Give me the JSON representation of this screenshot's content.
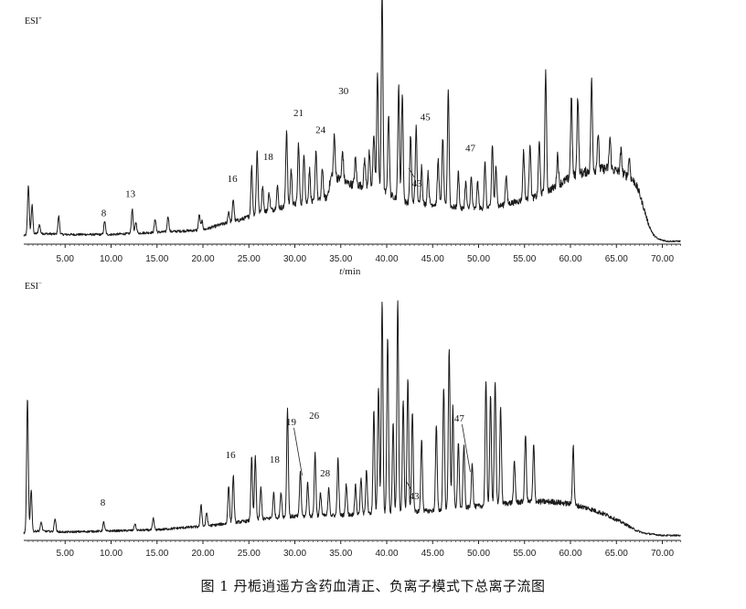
{
  "caption": "图 1 丹栀逍遥方含药血清正、负离子模式下总离子流图",
  "chart_data": {
    "type": "line",
    "xlabel_italic": "t",
    "xlabel_unit": "/min",
    "xlim": [
      0,
      72
    ],
    "x_ticks": [
      5,
      10,
      15,
      20,
      25,
      30,
      35,
      40,
      45,
      50,
      55,
      60,
      65,
      70
    ],
    "x_tick_labels": [
      "5.00",
      "10.00",
      "15.00",
      "20.00",
      "25.00",
      "30.00",
      "35.00",
      "40.00",
      "45.00",
      "50.00",
      "55.00",
      "60.00",
      "65.00",
      "70.00"
    ],
    "panels": [
      {
        "label": "ESI+",
        "label_main": "ESI",
        "label_sup": "+",
        "peak_labels": [
          {
            "text": "8",
            "x": 9.3
          },
          {
            "text": "13",
            "x": 12.3
          },
          {
            "text": "16",
            "x": 23.3
          },
          {
            "text": "18",
            "x": 27.2
          },
          {
            "text": "21",
            "x": 30.4
          },
          {
            "text": "24",
            "x": 32.2
          },
          {
            "text": "30",
            "x": 34.7
          },
          {
            "text": "43",
            "x": 42.8
          },
          {
            "text": "45",
            "x": 44.3
          },
          {
            "text": "47",
            "x": 49.2
          }
        ],
        "baseline": [
          [
            0.5,
            3
          ],
          [
            2,
            4
          ],
          [
            5,
            3.5
          ],
          [
            10,
            3.5
          ],
          [
            15,
            4.5
          ],
          [
            20,
            5.5
          ],
          [
            22,
            8
          ],
          [
            24,
            10
          ],
          [
            26,
            13
          ],
          [
            28,
            15
          ],
          [
            30,
            17
          ],
          [
            32,
            18
          ],
          [
            33.5,
            20
          ],
          [
            34,
            30
          ],
          [
            36,
            26
          ],
          [
            38,
            25
          ],
          [
            40,
            22
          ],
          [
            42,
            18
          ],
          [
            44,
            17
          ],
          [
            46,
            17
          ],
          [
            48,
            15
          ],
          [
            50,
            15
          ],
          [
            52,
            16
          ],
          [
            54,
            18
          ],
          [
            56,
            20
          ],
          [
            58,
            24
          ],
          [
            60,
            29
          ],
          [
            62,
            32
          ],
          [
            64,
            33
          ],
          [
            65,
            32
          ],
          [
            66,
            30
          ],
          [
            67,
            27
          ],
          [
            67.5,
            22
          ],
          [
            68,
            15
          ],
          [
            68.5,
            8
          ],
          [
            69,
            3.5
          ],
          [
            69.5,
            1.5
          ],
          [
            70.5,
            0.5
          ],
          [
            72,
            0.5
          ]
        ],
        "peaks": [
          [
            1.0,
            22
          ],
          [
            1.4,
            13
          ],
          [
            2.2,
            4
          ],
          [
            4.3,
            8
          ],
          [
            9.3,
            6
          ],
          [
            12.3,
            11
          ],
          [
            12.7,
            5
          ],
          [
            14.8,
            6
          ],
          [
            16.2,
            7
          ],
          [
            19.6,
            7
          ],
          [
            19.9,
            4
          ],
          [
            22.8,
            5
          ],
          [
            23.3,
            10
          ],
          [
            25.3,
            22
          ],
          [
            25.9,
            28
          ],
          [
            26.5,
            12
          ],
          [
            27.2,
            8
          ],
          [
            28.1,
            10
          ],
          [
            29.1,
            34
          ],
          [
            29.6,
            16
          ],
          [
            30.4,
            27
          ],
          [
            31.0,
            22
          ],
          [
            31.6,
            15
          ],
          [
            32.3,
            23
          ],
          [
            33.0,
            14
          ],
          [
            34.3,
            18
          ],
          [
            35.2,
            13
          ],
          [
            36.6,
            12
          ],
          [
            37.6,
            12
          ],
          [
            38.1,
            15
          ],
          [
            38.6,
            25
          ],
          [
            39.0,
            52
          ],
          [
            39.5,
            90
          ],
          [
            40.2,
            36
          ],
          [
            41.3,
            50
          ],
          [
            41.7,
            48
          ],
          [
            42.6,
            30
          ],
          [
            43.2,
            34
          ],
          [
            43.8,
            17
          ],
          [
            44.5,
            14
          ],
          [
            45.6,
            20
          ],
          [
            46.1,
            30
          ],
          [
            46.7,
            52
          ],
          [
            47.8,
            16
          ],
          [
            48.6,
            12
          ],
          [
            49.2,
            14
          ],
          [
            49.9,
            12
          ],
          [
            50.7,
            20
          ],
          [
            51.5,
            28
          ],
          [
            51.9,
            18
          ],
          [
            53.0,
            13
          ],
          [
            54.9,
            22
          ],
          [
            55.6,
            25
          ],
          [
            56.6,
            24
          ],
          [
            57.3,
            54
          ],
          [
            58.6,
            14
          ],
          [
            60.1,
            36
          ],
          [
            60.8,
            35
          ],
          [
            62.3,
            40
          ],
          [
            63.0,
            16
          ],
          [
            64.3,
            14
          ],
          [
            65.5,
            10
          ],
          [
            66.4,
            9
          ]
        ],
        "ymax": 105
      },
      {
        "label": "ESI-",
        "label_main": "ESI",
        "label_sup": "−",
        "peak_labels": [
          {
            "text": "8",
            "x": 9.2
          },
          {
            "text": "16",
            "x": 23.1
          },
          {
            "text": "18",
            "x": 28.0
          },
          {
            "text": "19",
            "x": 29.7
          },
          {
            "text": "26",
            "x": 32.2
          },
          {
            "text": "28",
            "x": 32.9
          },
          {
            "text": "43",
            "x": 42.2
          },
          {
            "text": "47",
            "x": 48.0
          }
        ],
        "baseline": [
          [
            0.5,
            2
          ],
          [
            2,
            3
          ],
          [
            5,
            2.5
          ],
          [
            10,
            3
          ],
          [
            15,
            3.5
          ],
          [
            18,
            4.5
          ],
          [
            20,
            5
          ],
          [
            22,
            6
          ],
          [
            24,
            7
          ],
          [
            26,
            8
          ],
          [
            28,
            9
          ],
          [
            30,
            9.5
          ],
          [
            35,
            10
          ],
          [
            40,
            11
          ],
          [
            45,
            12
          ],
          [
            48,
            13
          ],
          [
            50,
            14
          ],
          [
            52,
            15
          ],
          [
            55,
            16
          ],
          [
            58,
            16
          ],
          [
            60,
            15
          ],
          [
            62,
            13
          ],
          [
            64,
            10
          ],
          [
            66,
            6
          ],
          [
            67,
            3.5
          ],
          [
            68,
            2
          ],
          [
            70,
            1
          ],
          [
            72,
            1
          ]
        ],
        "peaks": [
          [
            0.9,
            60
          ],
          [
            1.3,
            19
          ],
          [
            2.4,
            4
          ],
          [
            3.9,
            6
          ],
          [
            9.2,
            4
          ],
          [
            12.6,
            3
          ],
          [
            14.6,
            5
          ],
          [
            19.8,
            10
          ],
          [
            20.4,
            6
          ],
          [
            22.8,
            17
          ],
          [
            23.3,
            21
          ],
          [
            25.3,
            28
          ],
          [
            25.7,
            28
          ],
          [
            26.3,
            14
          ],
          [
            27.7,
            11
          ],
          [
            28.5,
            11
          ],
          [
            29.2,
            48
          ],
          [
            30.6,
            20
          ],
          [
            31.4,
            15
          ],
          [
            32.2,
            28
          ],
          [
            32.8,
            10
          ],
          [
            33.7,
            12
          ],
          [
            34.7,
            25
          ],
          [
            35.6,
            14
          ],
          [
            36.6,
            13
          ],
          [
            37.2,
            16
          ],
          [
            37.8,
            20
          ],
          [
            38.6,
            46
          ],
          [
            39.1,
            56
          ],
          [
            39.5,
            95
          ],
          [
            40.1,
            79
          ],
          [
            40.7,
            40
          ],
          [
            41.2,
            95
          ],
          [
            41.8,
            50
          ],
          [
            42.3,
            60
          ],
          [
            42.8,
            45
          ],
          [
            43.8,
            32
          ],
          [
            45.4,
            38
          ],
          [
            46.2,
            55
          ],
          [
            46.8,
            72
          ],
          [
            47.2,
            46
          ],
          [
            47.8,
            30
          ],
          [
            48.4,
            28
          ],
          [
            49.3,
            20
          ],
          [
            50.8,
            55
          ],
          [
            51.3,
            48
          ],
          [
            51.8,
            55
          ],
          [
            52.4,
            43
          ],
          [
            53.9,
            18
          ],
          [
            55.1,
            30
          ],
          [
            56.0,
            25
          ],
          [
            60.3,
            26
          ]
        ],
        "ymax": 105
      }
    ]
  }
}
